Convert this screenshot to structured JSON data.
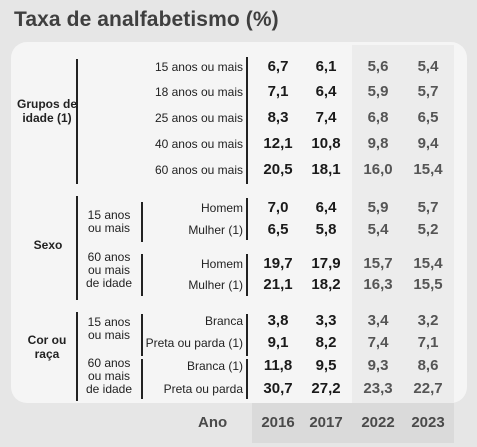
{
  "title": "Taxa de analfabetismo (%)",
  "groups": [
    {
      "label": "Grupos de idade (1)"
    },
    {
      "label": "Sexo",
      "subgroups": [
        "15 anos ou mais",
        "60 anos ou mais de idade"
      ]
    },
    {
      "label": "Cor ou raça",
      "subgroups": [
        "15 anos ou mais",
        "60 anos ou mais de idade"
      ]
    }
  ],
  "footer": {
    "ano_label": "Ano"
  },
  "chart_data": {
    "type": "table",
    "title": "Taxa de analfabetismo (%)",
    "columns": [
      "2016",
      "2017",
      "2022",
      "2023"
    ],
    "rows": [
      {
        "label": "15 anos ou mais",
        "values": [
          "6,7",
          "6,1",
          "5,6",
          "5,4"
        ]
      },
      {
        "label": "18 anos ou mais",
        "values": [
          "7,1",
          "6,4",
          "5,9",
          "5,7"
        ]
      },
      {
        "label": "25 anos ou mais",
        "values": [
          "8,3",
          "7,4",
          "6,8",
          "6,5"
        ]
      },
      {
        "label": "40 anos ou mais",
        "values": [
          "12,1",
          "10,8",
          "9,8",
          "9,4"
        ]
      },
      {
        "label": "60 anos ou mais",
        "values": [
          "20,5",
          "18,1",
          "16,0",
          "15,4"
        ]
      },
      {
        "label": "Homem",
        "values": [
          "7,0",
          "6,4",
          "5,9",
          "5,7"
        ]
      },
      {
        "label": "Mulher (1)",
        "values": [
          "6,5",
          "5,8",
          "5,4",
          "5,2"
        ]
      },
      {
        "label": "Homem",
        "values": [
          "19,7",
          "17,9",
          "15,7",
          "15,4"
        ]
      },
      {
        "label": "Mulher (1)",
        "values": [
          "21,1",
          "18,2",
          "16,3",
          "15,5"
        ]
      },
      {
        "label": "Branca",
        "values": [
          "3,8",
          "3,3",
          "3,4",
          "3,2"
        ]
      },
      {
        "label": "Preta ou parda (1)",
        "values": [
          "9,1",
          "8,2",
          "7,4",
          "7,1"
        ]
      },
      {
        "label": "Branca (1)",
        "values": [
          "11,8",
          "9,5",
          "9,3",
          "8,6"
        ]
      },
      {
        "label": "Preta ou parda",
        "values": [
          "30,7",
          "27,2",
          "23,3",
          "22,7"
        ]
      }
    ]
  }
}
